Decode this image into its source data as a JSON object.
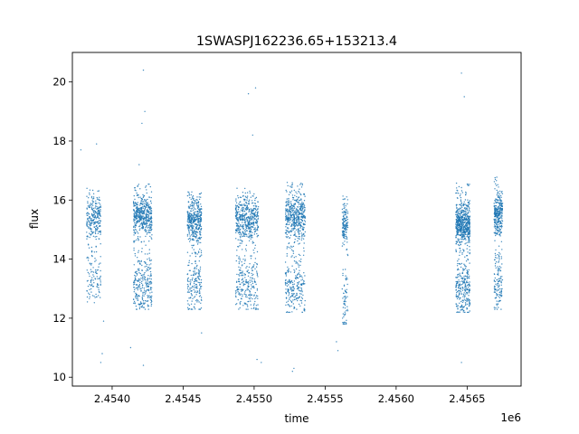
{
  "chart_data": {
    "type": "scatter",
    "title": "1SWASPJ162236.65+153213.4",
    "xlabel": "time",
    "ylabel": "flux",
    "x_offset_label": "1e6",
    "xlim": [
      2.45372,
      2.45688
    ],
    "ylim": [
      9.7,
      21.0
    ],
    "x_ticks": [
      2.454,
      2.4545,
      2.455,
      2.4555,
      2.456,
      2.4565
    ],
    "x_tick_labels": [
      "2.4540",
      "2.4545",
      "2.4550",
      "2.4555",
      "2.4560",
      "2.4565"
    ],
    "y_ticks": [
      10,
      12,
      14,
      16,
      18,
      20
    ],
    "y_tick_labels": [
      "10",
      "12",
      "14",
      "16",
      "18",
      "20"
    ],
    "grid": false,
    "legend": "none",
    "point_color": "#1f77b4",
    "observing_seasons": [
      {
        "x_start": 2.45382,
        "x_end": 2.45392,
        "y_low": 12.5,
        "y_high": 16.4,
        "y_core": 15.4,
        "density": 0.5
      },
      {
        "x_start": 2.45415,
        "x_end": 2.45428,
        "y_low": 12.3,
        "y_high": 16.6,
        "y_core": 15.5,
        "density": 1.0
      },
      {
        "x_start": 2.45453,
        "x_end": 2.45463,
        "y_low": 12.3,
        "y_high": 16.3,
        "y_core": 15.3,
        "density": 0.8
      },
      {
        "x_start": 2.45487,
        "x_end": 2.45503,
        "y_low": 12.3,
        "y_high": 16.4,
        "y_core": 15.3,
        "density": 1.0
      },
      {
        "x_start": 2.45522,
        "x_end": 2.45536,
        "y_low": 12.2,
        "y_high": 16.6,
        "y_core": 15.4,
        "density": 1.0
      },
      {
        "x_start": 2.45562,
        "x_end": 2.45566,
        "y_low": 11.8,
        "y_high": 16.3,
        "y_core": 15.2,
        "density": 0.3
      },
      {
        "x_start": 2.45642,
        "x_end": 2.45652,
        "y_low": 12.2,
        "y_high": 16.6,
        "y_core": 15.2,
        "density": 1.2
      },
      {
        "x_start": 2.45669,
        "x_end": 2.45675,
        "y_low": 12.3,
        "y_high": 16.8,
        "y_core": 15.5,
        "density": 0.6
      }
    ],
    "outliers": [
      {
        "x": 2.45422,
        "y": 20.4
      },
      {
        "x": 2.45423,
        "y": 19.0
      },
      {
        "x": 2.45421,
        "y": 18.6
      },
      {
        "x": 2.45496,
        "y": 19.6
      },
      {
        "x": 2.45501,
        "y": 19.8
      },
      {
        "x": 2.45499,
        "y": 18.2
      },
      {
        "x": 2.45389,
        "y": 17.9
      },
      {
        "x": 2.45378,
        "y": 17.7
      },
      {
        "x": 2.45419,
        "y": 17.2
      },
      {
        "x": 2.45646,
        "y": 20.3
      },
      {
        "x": 2.45648,
        "y": 19.5
      },
      {
        "x": 2.45393,
        "y": 10.8
      },
      {
        "x": 2.45392,
        "y": 10.5
      },
      {
        "x": 2.45422,
        "y": 10.4
      },
      {
        "x": 2.45502,
        "y": 10.6
      },
      {
        "x": 2.45505,
        "y": 10.5
      },
      {
        "x": 2.45528,
        "y": 10.3
      },
      {
        "x": 2.45527,
        "y": 10.2
      },
      {
        "x": 2.45646,
        "y": 10.5
      },
      {
        "x": 2.45413,
        "y": 11.0
      },
      {
        "x": 2.45394,
        "y": 11.9
      },
      {
        "x": 2.45463,
        "y": 11.5
      },
      {
        "x": 2.45558,
        "y": 11.2
      },
      {
        "x": 2.45559,
        "y": 10.9
      }
    ]
  }
}
